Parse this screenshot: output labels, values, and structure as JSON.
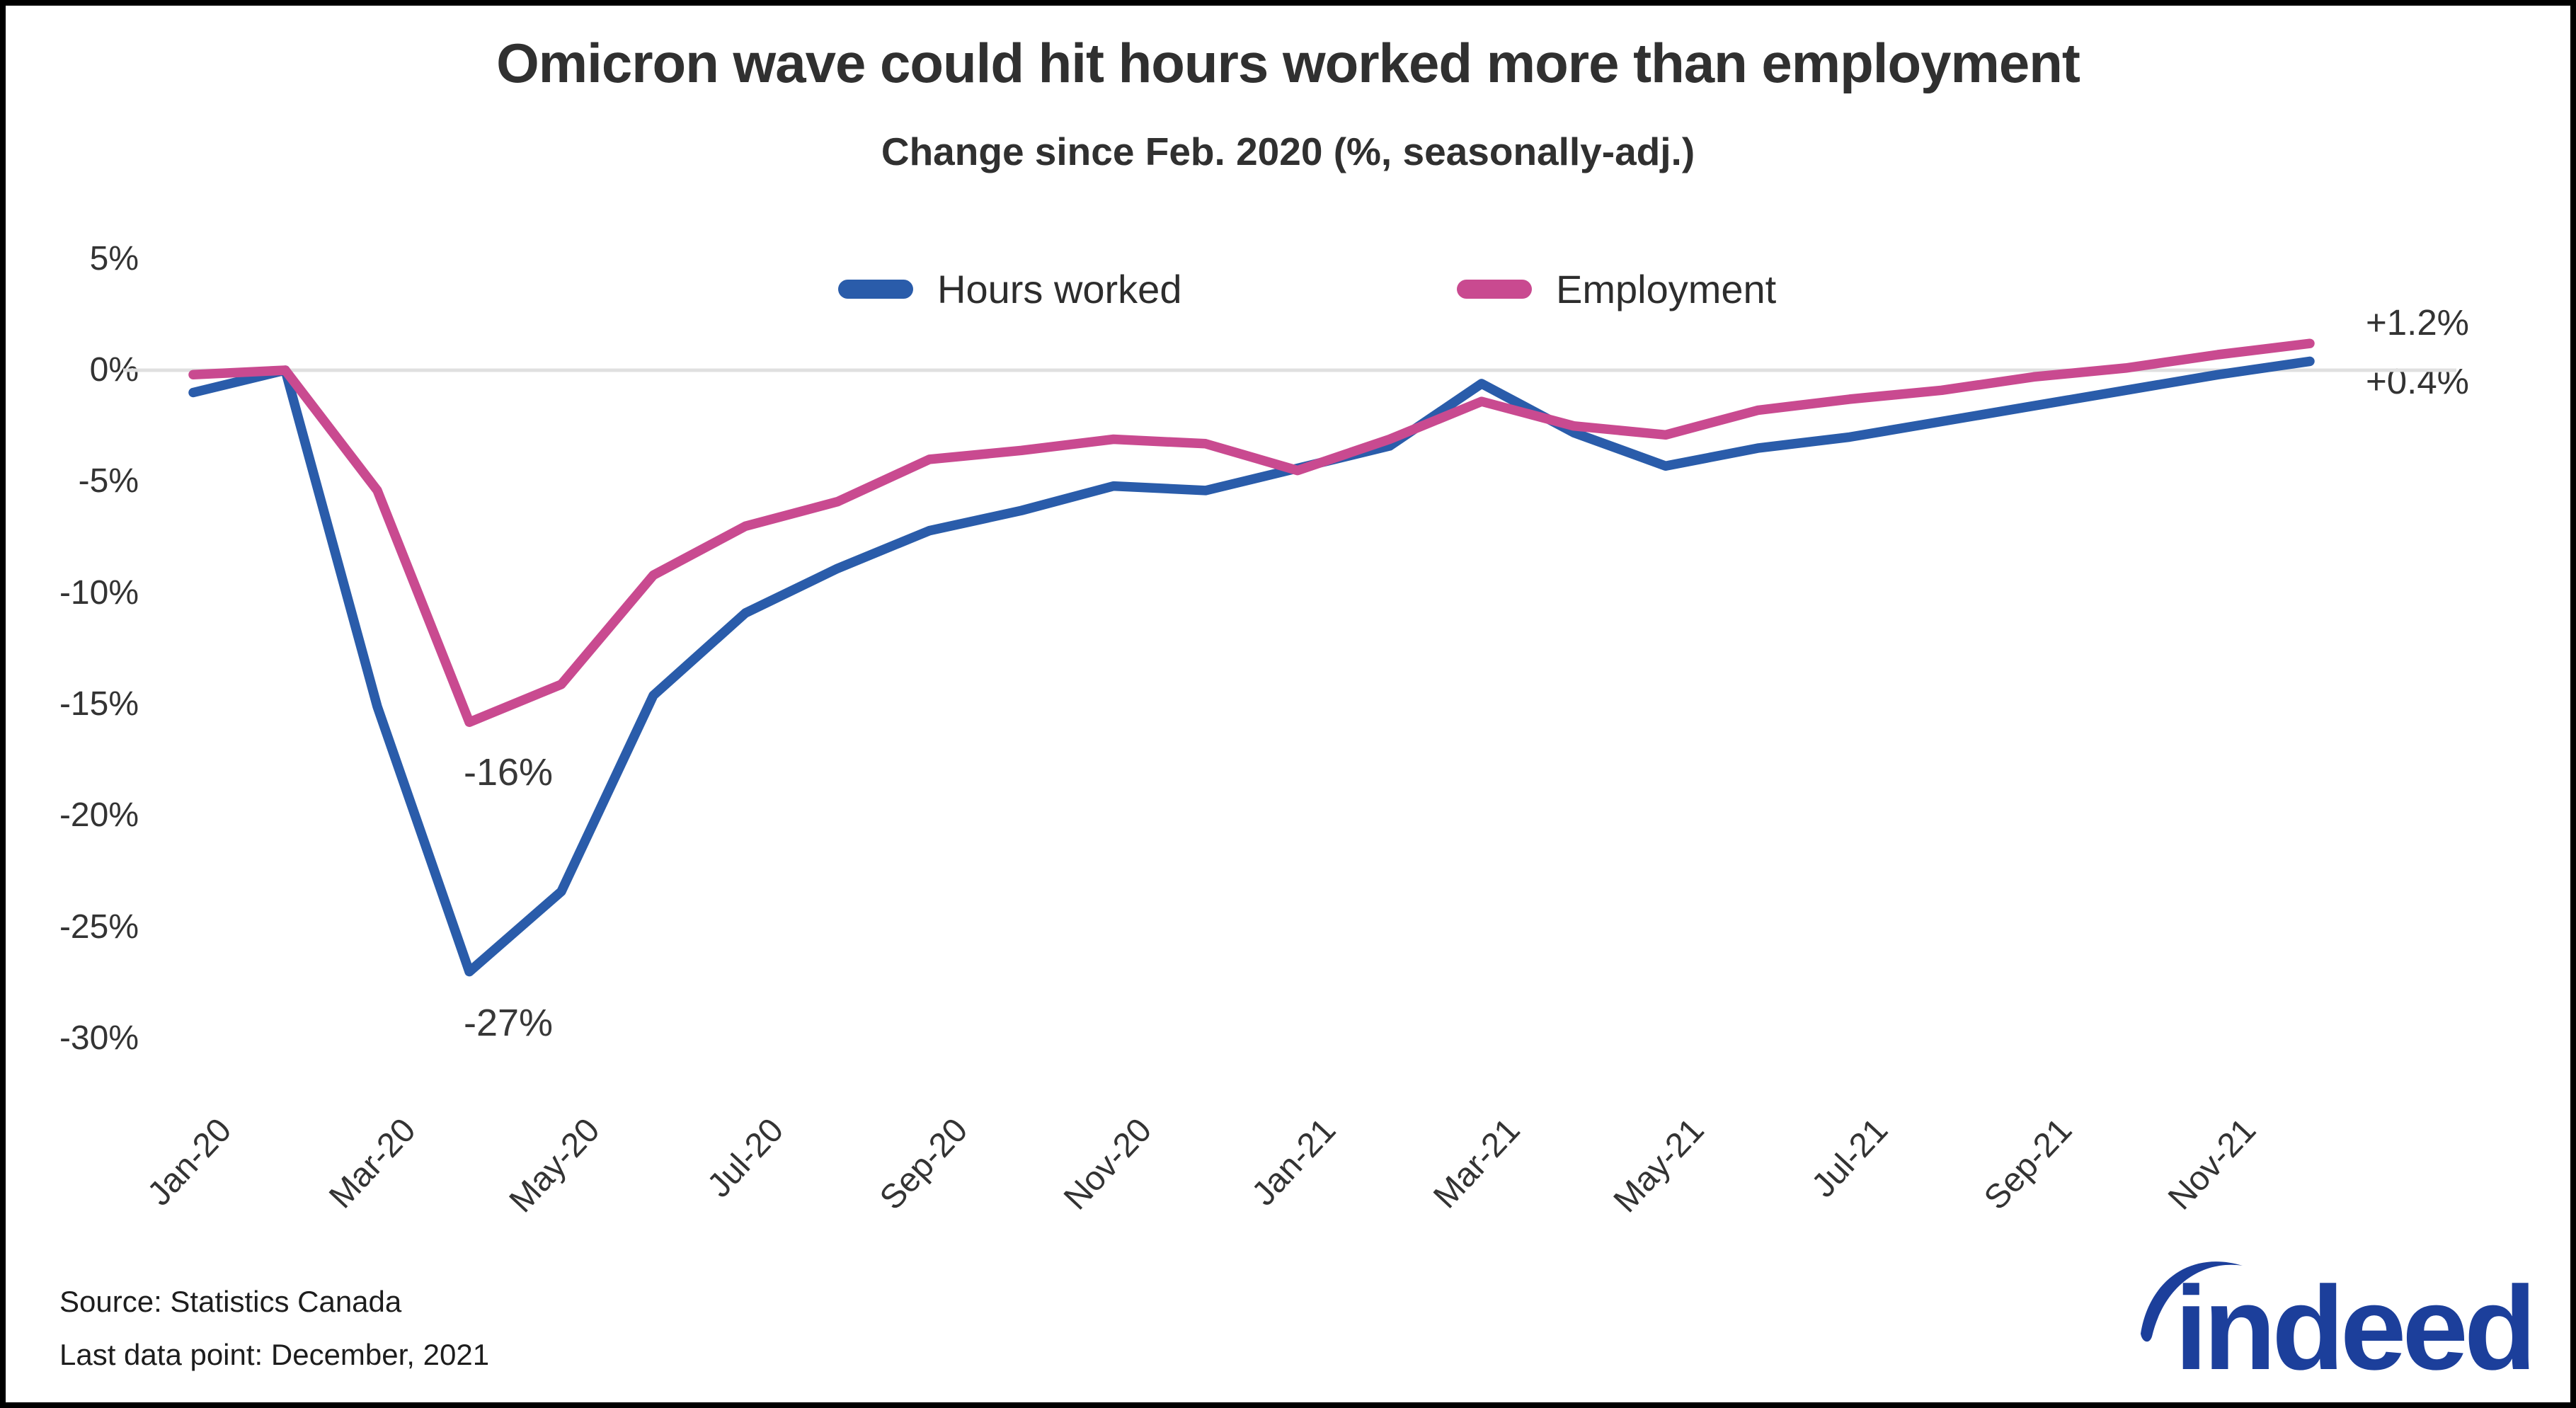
{
  "header": {
    "title": "Omicron wave could hit hours worked more than employment",
    "subtitle": "Change since Feb. 2020 (%, seasonally-adj.)"
  },
  "annotations": {
    "employment_trough": "-16%",
    "hours_trough": "-27%",
    "employment_latest": "+1.2%",
    "hours_latest": "+0.4%"
  },
  "footer": {
    "source": "Source: Statistics Canada",
    "last_data_point": "Last data point: December, 2021"
  },
  "logo": {
    "text": "indeed",
    "color": "#1c3f9b"
  },
  "colors": {
    "hours_worked": "#2a5caa",
    "employment": "#c94a90",
    "zero_gridline": "#e0e0e0",
    "text": "#333333"
  },
  "chart_data": {
    "type": "line",
    "title": "Omicron wave could hit hours worked more than employment",
    "subtitle": "Change since Feb. 2020 (%, seasonally-adj.)",
    "xlabel": "",
    "ylabel": "Change since Feb. 2020 (%)",
    "ylim": [
      -30,
      5
    ],
    "grid": "zero-line-only",
    "legend_position": "top-center",
    "categories": [
      "Jan-20",
      "Feb-20",
      "Mar-20",
      "Apr-20",
      "May-20",
      "Jun-20",
      "Jul-20",
      "Aug-20",
      "Sep-20",
      "Oct-20",
      "Nov-20",
      "Dec-20",
      "Jan-21",
      "Feb-21",
      "Mar-21",
      "Apr-21",
      "May-21",
      "Jun-21",
      "Jul-21",
      "Aug-21",
      "Sep-21",
      "Oct-21",
      "Nov-21",
      "Dec-21"
    ],
    "x_tick_labels": [
      "Jan-20",
      "Mar-20",
      "May-20",
      "Jul-20",
      "Sep-20",
      "Nov-20",
      "Jan-21",
      "Mar-21",
      "May-21",
      "Jul-21",
      "Sep-21",
      "Nov-21"
    ],
    "y_ticks": [
      5,
      0,
      -5,
      -10,
      -15,
      -20,
      -25,
      -30
    ],
    "series": [
      {
        "name": "Hours worked",
        "color": "#2a5caa",
        "values": [
          -1.0,
          0,
          -15.1,
          -27.0,
          -23.4,
          -14.6,
          -10.9,
          -8.9,
          -7.2,
          -6.3,
          -5.2,
          -5.4,
          -4.4,
          -3.4,
          -0.6,
          -2.8,
          -4.3,
          -3.5,
          -3.0,
          -2.3,
          -1.6,
          -0.9,
          -0.2,
          0.4
        ]
      },
      {
        "name": "Employment",
        "color": "#c94a90",
        "values": [
          -0.2,
          0,
          -5.4,
          -15.8,
          -14.1,
          -9.2,
          -7.0,
          -5.9,
          -4.0,
          -3.6,
          -3.1,
          -3.3,
          -4.5,
          -3.1,
          -1.4,
          -2.5,
          -2.9,
          -1.8,
          -1.3,
          -0.9,
          -0.3,
          0.1,
          0.7,
          1.2
        ]
      }
    ]
  }
}
